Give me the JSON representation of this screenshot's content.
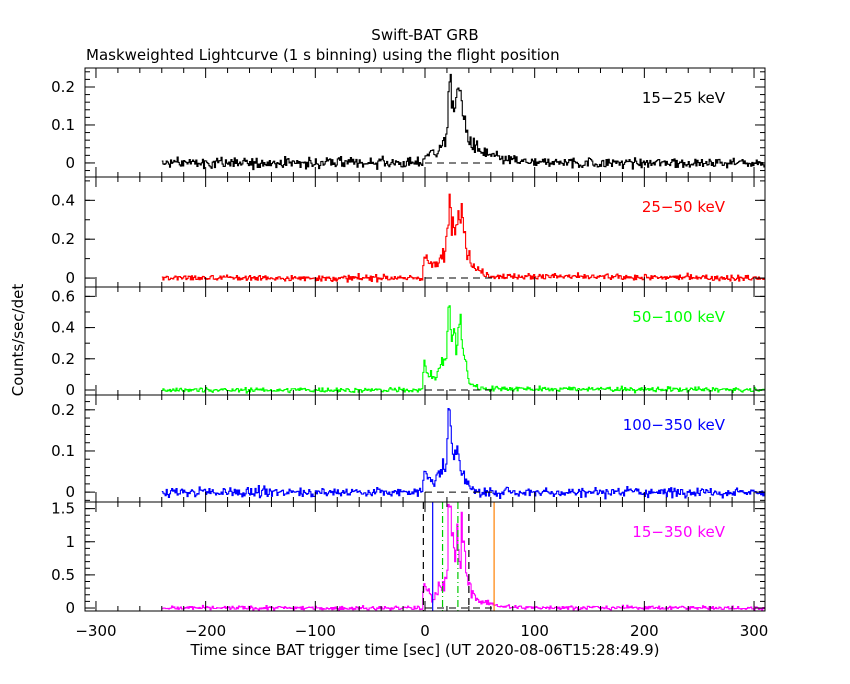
{
  "chart_data": {
    "type": "line",
    "title": "Swift-BAT GRB",
    "subtitle": "Maskweighted Lightcurve (1 s binning) using the flight position",
    "xlabel": "Time since BAT trigger time [sec] (UT 2020-08-06T15:28:49.9)",
    "ylabel": "Counts/sec/det",
    "xlim": [
      -310,
      310
    ],
    "x_ticks": [
      -300,
      -200,
      -100,
      0,
      100,
      200,
      300
    ],
    "data_range": [
      -240,
      310
    ],
    "bin_seconds": 1,
    "panels": [
      {
        "name": "15-25 keV",
        "label": "15−25 keV",
        "color": "#000000",
        "ylim": [
          -0.037,
          0.25
        ],
        "y_ticks": [
          {
            "v": 0,
            "t": "0"
          },
          {
            "v": 0.1,
            "t": "0.1"
          },
          {
            "v": 0.2,
            "t": "0.2"
          }
        ],
        "minor_step": 0.02,
        "noise": 0.007,
        "profile": [
          [
            -240,
            0
          ],
          [
            -3,
            0
          ],
          [
            0,
            0.02
          ],
          [
            10,
            0.03
          ],
          [
            18,
            0.05
          ],
          [
            20,
            0.09
          ],
          [
            22,
            0.24
          ],
          [
            24,
            0.15
          ],
          [
            27,
            0.12
          ],
          [
            30,
            0.23
          ],
          [
            32,
            0.19
          ],
          [
            35,
            0.12
          ],
          [
            40,
            0.06
          ],
          [
            50,
            0.03
          ],
          [
            70,
            0.01
          ],
          [
            100,
            0
          ],
          [
            310,
            0
          ]
        ]
      },
      {
        "name": "25-50 keV",
        "label": "25−50 keV",
        "color": "#ff0000",
        "ylim": [
          -0.046,
          0.52
        ],
        "y_ticks": [
          {
            "v": 0,
            "t": "0"
          },
          {
            "v": 0.2,
            "t": "0.2"
          },
          {
            "v": 0.4,
            "t": "0.4"
          }
        ],
        "minor_step": 0.1,
        "noise": 0.008,
        "profile": [
          [
            -240,
            0
          ],
          [
            -2,
            0
          ],
          [
            -1,
            0.12
          ],
          [
            3,
            0.08
          ],
          [
            10,
            0.06
          ],
          [
            18,
            0.13
          ],
          [
            20,
            0.2
          ],
          [
            22,
            0.47
          ],
          [
            24,
            0.3
          ],
          [
            27,
            0.26
          ],
          [
            30,
            0.45
          ],
          [
            32,
            0.3
          ],
          [
            34,
            0.35
          ],
          [
            38,
            0.14
          ],
          [
            45,
            0.05
          ],
          [
            60,
            0.01
          ],
          [
            310,
            0
          ]
        ]
      },
      {
        "name": "50-100 keV",
        "label": "50−100 keV",
        "color": "#00ff00",
        "ylim": [
          -0.032,
          0.66
        ],
        "y_ticks": [
          {
            "v": 0,
            "t": "0"
          },
          {
            "v": 0.2,
            "t": "0.2"
          },
          {
            "v": 0.4,
            "t": "0.4"
          },
          {
            "v": 0.6,
            "t": "0.6"
          }
        ],
        "minor_step": 0.1,
        "noise": 0.008,
        "profile": [
          [
            -240,
            0
          ],
          [
            -2,
            0
          ],
          [
            -1,
            0.18
          ],
          [
            3,
            0.1
          ],
          [
            10,
            0.07
          ],
          [
            16,
            0.2
          ],
          [
            20,
            0.22
          ],
          [
            22,
            0.62
          ],
          [
            24,
            0.3
          ],
          [
            27,
            0.36
          ],
          [
            29,
            0.24
          ],
          [
            32,
            0.5
          ],
          [
            35,
            0.25
          ],
          [
            40,
            0.05
          ],
          [
            50,
            0.01
          ],
          [
            310,
            0
          ]
        ]
      },
      {
        "name": "100-350 keV",
        "label": "100−350 keV",
        "color": "#0000ff",
        "ylim": [
          -0.024,
          0.236
        ],
        "y_ticks": [
          {
            "v": 0,
            "t": "0"
          },
          {
            "v": 0.1,
            "t": "0.1"
          },
          {
            "v": 0.2,
            "t": "0.2"
          }
        ],
        "minor_step": 0.02,
        "noise": 0.006,
        "profile": [
          [
            -240,
            0
          ],
          [
            -2,
            0
          ],
          [
            -1,
            0.07
          ],
          [
            3,
            0.04
          ],
          [
            8,
            0.02
          ],
          [
            16,
            0.06
          ],
          [
            20,
            0.07
          ],
          [
            22,
            0.22
          ],
          [
            25,
            0.08
          ],
          [
            30,
            0.12
          ],
          [
            33,
            0.06
          ],
          [
            38,
            0.02
          ],
          [
            45,
            0
          ],
          [
            310,
            0
          ]
        ]
      },
      {
        "name": "15-350 keV",
        "label": "15−350 keV",
        "color": "#ff00ff",
        "ylim": [
          -0.045,
          1.6
        ],
        "y_ticks": [
          {
            "v": 0,
            "t": "0"
          },
          {
            "v": 0.5,
            "t": "0.5"
          },
          {
            "v": 1,
            "t": "1"
          },
          {
            "v": 1.5,
            "t": "1.5"
          }
        ],
        "minor_step": 0.1,
        "noise": 0.015,
        "profile": [
          [
            -240,
            0
          ],
          [
            -2,
            0
          ],
          [
            -1,
            0.38
          ],
          [
            3,
            0.25
          ],
          [
            8,
            0.12
          ],
          [
            12,
            0.3
          ],
          [
            18,
            0.38
          ],
          [
            20,
            0.5
          ],
          [
            22,
            1.55
          ],
          [
            25,
            1.0
          ],
          [
            27,
            0.7
          ],
          [
            30,
            1.2
          ],
          [
            32,
            0.5
          ],
          [
            34,
            1.3
          ],
          [
            37,
            0.6
          ],
          [
            42,
            0.25
          ],
          [
            50,
            0.1
          ],
          [
            65,
            0.04
          ],
          [
            80,
            0.01
          ],
          [
            310,
            0
          ]
        ],
        "markers": [
          {
            "t": -1.5,
            "color": "#000000",
            "style": "dashed"
          },
          {
            "t": 40,
            "color": "#000000",
            "style": "dashed"
          },
          {
            "t": 7,
            "color": "#0000ff",
            "style": "solid"
          },
          {
            "t": 16,
            "color": "#00c800",
            "style": "dashdot"
          },
          {
            "t": 30,
            "color": "#00c800",
            "style": "dashdot"
          },
          {
            "t": 63,
            "color": "#ff8000",
            "style": "solid"
          }
        ]
      }
    ],
    "zero_line": {
      "from": 0,
      "to": 65,
      "style": "dashed"
    },
    "grid": false
  }
}
